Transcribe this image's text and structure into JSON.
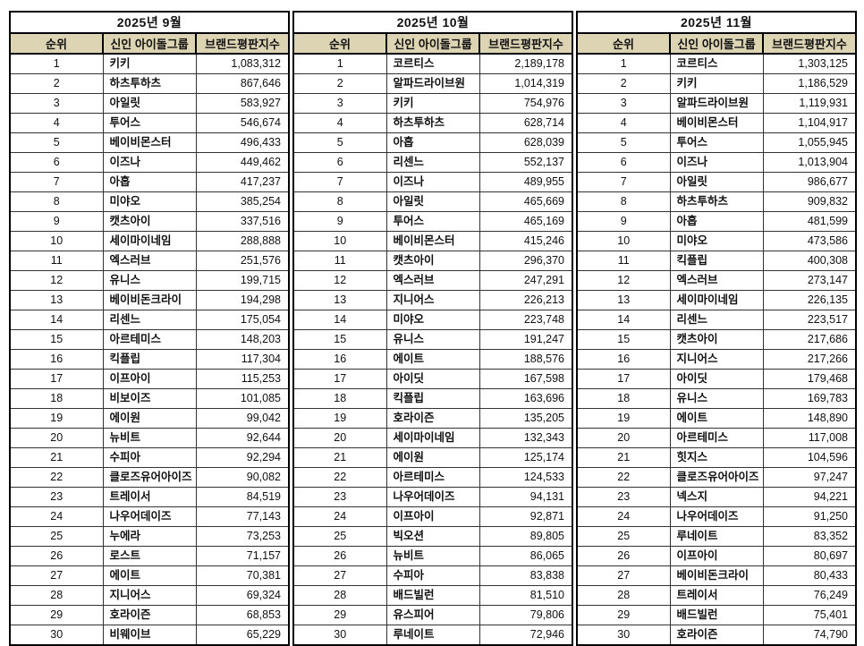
{
  "styles": {
    "header_bg": "#ddd4b4",
    "outer_border": "#000000",
    "inner_border": "#333333",
    "text_color": "#111111",
    "page_bg": "#ffffff"
  },
  "chart_data": [
    {
      "type": "table",
      "title": "2025년 9월",
      "columns": [
        "순위",
        "신인 아이돌그룹",
        "브랜드평판지수"
      ],
      "rows": [
        [
          1,
          "키키",
          1083312
        ],
        [
          2,
          "하츠투하츠",
          867646
        ],
        [
          3,
          "아일릿",
          583927
        ],
        [
          4,
          "투어스",
          546674
        ],
        [
          5,
          "베이비몬스터",
          496433
        ],
        [
          6,
          "이즈나",
          449462
        ],
        [
          7,
          "아홉",
          417237
        ],
        [
          8,
          "미야오",
          385254
        ],
        [
          9,
          "캣츠아이",
          337516
        ],
        [
          10,
          "세이마이네임",
          288888
        ],
        [
          11,
          "엑스러브",
          251576
        ],
        [
          12,
          "유니스",
          199715
        ],
        [
          13,
          "베이비돈크라이",
          194298
        ],
        [
          14,
          "리센느",
          175054
        ],
        [
          15,
          "아르테미스",
          148203
        ],
        [
          16,
          "킥플립",
          117304
        ],
        [
          17,
          "이프아이",
          115253
        ],
        [
          18,
          "비보이즈",
          101085
        ],
        [
          19,
          "에이원",
          99042
        ],
        [
          20,
          "뉴비트",
          92644
        ],
        [
          21,
          "수피아",
          92294
        ],
        [
          22,
          "클로즈유어아이즈",
          90082
        ],
        [
          23,
          "트레이서",
          84519
        ],
        [
          24,
          "나우어데이즈",
          77143
        ],
        [
          25,
          "누에라",
          73253
        ],
        [
          26,
          "로스트",
          71157
        ],
        [
          27,
          "에이트",
          70381
        ],
        [
          28,
          "지니어스",
          69324
        ],
        [
          29,
          "호라이즌",
          68853
        ],
        [
          30,
          "비웨이브",
          65229
        ]
      ]
    },
    {
      "type": "table",
      "title": "2025년 10월",
      "columns": [
        "순위",
        "신인 아이돌그룹",
        "브랜드평판지수"
      ],
      "rows": [
        [
          1,
          "코르티스",
          2189178
        ],
        [
          2,
          "알파드라이브원",
          1014319
        ],
        [
          3,
          "키키",
          754976
        ],
        [
          4,
          "하츠투하츠",
          628714
        ],
        [
          5,
          "아홉",
          628039
        ],
        [
          6,
          "리센느",
          552137
        ],
        [
          7,
          "이즈나",
          489955
        ],
        [
          8,
          "아일릿",
          465669
        ],
        [
          9,
          "투어스",
          465169
        ],
        [
          10,
          "베이비몬스터",
          415246
        ],
        [
          11,
          "캣츠아이",
          296370
        ],
        [
          12,
          "엑스러브",
          247291
        ],
        [
          13,
          "지니어스",
          226213
        ],
        [
          14,
          "미야오",
          223748
        ],
        [
          15,
          "유니스",
          191247
        ],
        [
          16,
          "에이트",
          188576
        ],
        [
          17,
          "아이딧",
          167598
        ],
        [
          18,
          "킥플립",
          163696
        ],
        [
          19,
          "호라이즌",
          135205
        ],
        [
          20,
          "세이마이네임",
          132343
        ],
        [
          21,
          "에이원",
          125174
        ],
        [
          22,
          "아르테미스",
          124533
        ],
        [
          23,
          "나우어데이즈",
          94131
        ],
        [
          24,
          "이프아이",
          92871
        ],
        [
          25,
          "빅오션",
          89805
        ],
        [
          26,
          "뉴비트",
          86065
        ],
        [
          27,
          "수피아",
          83838
        ],
        [
          28,
          "배드빌런",
          81510
        ],
        [
          29,
          "유스피어",
          79806
        ],
        [
          30,
          "루네이트",
          72946
        ]
      ]
    },
    {
      "type": "table",
      "title": "2025년 11월",
      "columns": [
        "순위",
        "신인 아이돌그룹",
        "브랜드평판지수"
      ],
      "rows": [
        [
          1,
          "코르티스",
          1303125
        ],
        [
          2,
          "키키",
          1186529
        ],
        [
          3,
          "알파드라이브원",
          1119931
        ],
        [
          4,
          "베이비몬스터",
          1104917
        ],
        [
          5,
          "투어스",
          1055945
        ],
        [
          6,
          "이즈나",
          1013904
        ],
        [
          7,
          "아일릿",
          986677
        ],
        [
          8,
          "하츠투하츠",
          909832
        ],
        [
          9,
          "아홉",
          481599
        ],
        [
          10,
          "미야오",
          473586
        ],
        [
          11,
          "킥플립",
          400308
        ],
        [
          12,
          "엑스러브",
          273147
        ],
        [
          13,
          "세이마이네임",
          226135
        ],
        [
          14,
          "리센느",
          223517
        ],
        [
          15,
          "캣츠아이",
          217686
        ],
        [
          16,
          "지니어스",
          217266
        ],
        [
          17,
          "아이딧",
          179468
        ],
        [
          18,
          "유니스",
          169783
        ],
        [
          19,
          "에이트",
          148890
        ],
        [
          20,
          "아르테미스",
          117008
        ],
        [
          21,
          "힛지스",
          104596
        ],
        [
          22,
          "클로즈유어아이즈",
          97247
        ],
        [
          23,
          "넥스지",
          94221
        ],
        [
          24,
          "나우어데이즈",
          91250
        ],
        [
          25,
          "루네이트",
          83352
        ],
        [
          26,
          "이프아이",
          80697
        ],
        [
          27,
          "베이비돈크라이",
          80433
        ],
        [
          28,
          "트레이서",
          76249
        ],
        [
          29,
          "배드빌런",
          75401
        ],
        [
          30,
          "호라이즌",
          74790
        ]
      ]
    }
  ]
}
